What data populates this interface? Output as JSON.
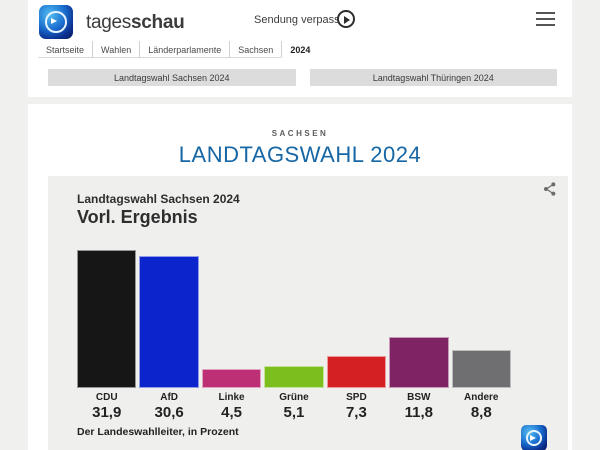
{
  "header": {
    "brand": {
      "regular": "tages",
      "bold": "schau"
    },
    "sendung_verpasst": "Sendung verpasst?",
    "nav": [
      {
        "label": "Startseite"
      },
      {
        "label": "Wahlen"
      },
      {
        "label": "Länderparlamente"
      },
      {
        "label": "Sachsen"
      },
      {
        "label": "2024"
      }
    ],
    "tabs": [
      {
        "label": "Landtagswahl Sachsen 2024"
      },
      {
        "label": "Landtagswahl Thüringen 2024"
      }
    ]
  },
  "main": {
    "kicker": "SACHSEN",
    "title": "LANDTAGSWAHL 2024"
  },
  "chart_card": {
    "subtitle": "Landtagswahl Sachsen 2024",
    "title": "Vorl. Ergebnis",
    "source": "Der Landeswahlleiter, in Prozent"
  },
  "chart_data": {
    "type": "bar",
    "title": "Vorl. Ergebnis",
    "subtitle": "Landtagswahl Sachsen 2024",
    "categories": [
      "CDU",
      "AfD",
      "Linke",
      "Grüne",
      "SPD",
      "BSW",
      "Andere"
    ],
    "values": [
      31.9,
      30.6,
      4.5,
      5.1,
      7.3,
      11.8,
      8.8
    ],
    "value_labels": [
      "31,9",
      "30,6",
      "4,5",
      "5,1",
      "7,3",
      "11,8",
      "8,8"
    ],
    "colors": [
      "#161616",
      "#0c24cc",
      "#bd3075",
      "#7cbe1e",
      "#d42022",
      "#7f2365",
      "#6f6f71"
    ],
    "unit": "Prozent",
    "source": "Der Landeswahlleiter, in Prozent",
    "ylim": [
      0,
      32
    ],
    "grid": false,
    "legend": "none"
  },
  "icons": {
    "play": "play-icon",
    "menu": "hamburger-menu-icon",
    "share": "share-icon",
    "logo": "tagesschau-logo"
  },
  "colors": {
    "title_blue": "#1767a5",
    "card_bg": "#efefed",
    "tab_bg": "#dcdcdc"
  }
}
